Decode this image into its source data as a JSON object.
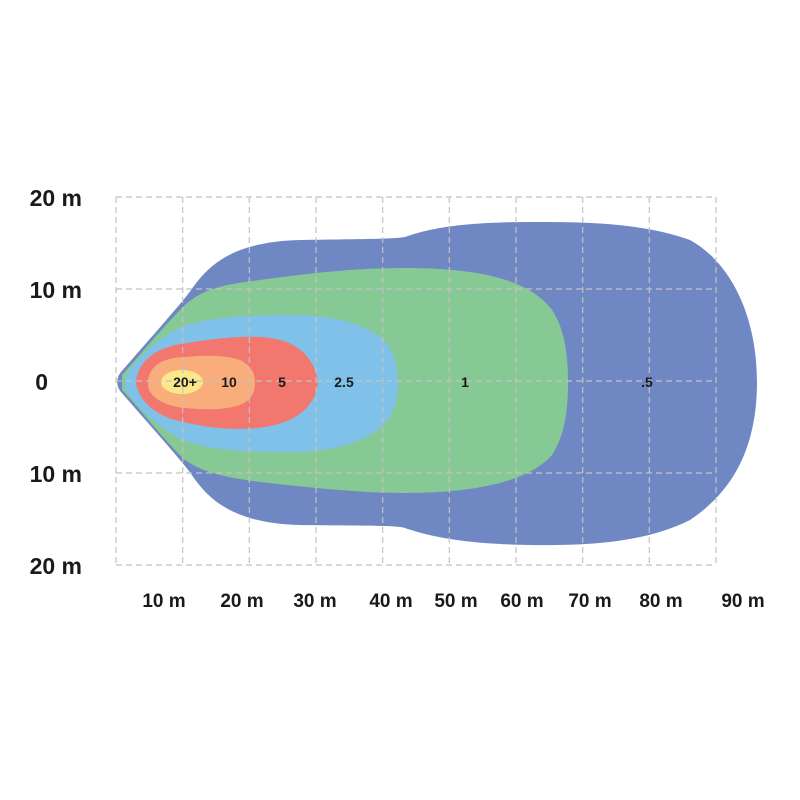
{
  "chart_data": {
    "type": "area",
    "title": "",
    "xlabel": "",
    "ylabel": "",
    "grid": true,
    "x_unit": "m",
    "y_unit": "m",
    "xlim": [
      0,
      90
    ],
    "ylim": [
      -20,
      20
    ],
    "x_ticks": [
      "10 m",
      "20 m",
      "30 m",
      "40 m",
      "50 m",
      "60 m",
      "70 m",
      "80 m",
      "90 m"
    ],
    "y_ticks": [
      "20 m",
      "10 m",
      "0",
      "10 m",
      "20 m"
    ],
    "colors": {
      "zone_05": "#6f88c3",
      "zone_1": "#86c995",
      "zone_2_5": "#7fc1e8",
      "zone_5": "#f2776e",
      "zone_10": "#f8ad7b",
      "zone_20": "#fbe88a",
      "grid": "#c2c2c2"
    },
    "zones": [
      {
        "label": ".5",
        "max_distance_m": 96,
        "max_half_width_m": 17.5,
        "label_x_m": 80
      },
      {
        "label": "1",
        "max_distance_m": 68,
        "max_half_width_m": 12.5,
        "label_x_m": 52
      },
      {
        "label": "2.5",
        "max_distance_m": 42,
        "max_half_width_m": 7.5,
        "label_x_m": 34
      },
      {
        "label": "5",
        "max_distance_m": 30,
        "max_half_width_m": 5,
        "label_x_m": 25
      },
      {
        "label": "10",
        "max_distance_m": 20,
        "max_half_width_m": 2.8,
        "label_x_m": 17
      },
      {
        "label": "20+",
        "max_distance_m": 13,
        "max_half_width_m": 1.2,
        "label_x_m": 10
      }
    ]
  }
}
